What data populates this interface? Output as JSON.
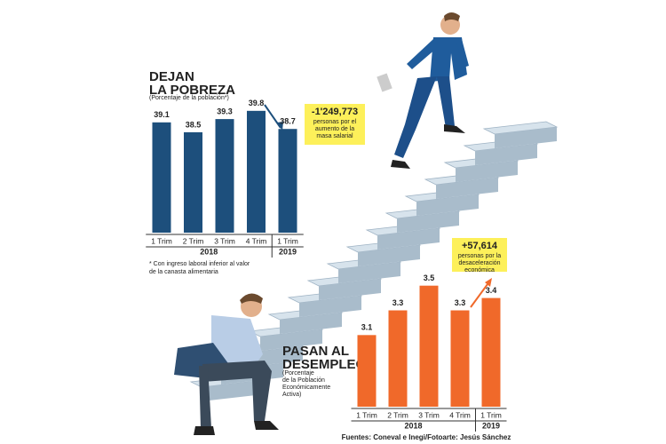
{
  "chart_data": [
    {
      "type": "bar",
      "title_lines": [
        "DEJAN",
        "LA POBREZA"
      ],
      "subtitle": "(Porcentaje de la población*)",
      "categories": [
        "1 Trim",
        "2 Trim",
        "3 Trim",
        "4 Trim",
        "1 Trim"
      ],
      "years": [
        "2018",
        "2019"
      ],
      "values": [
        39.1,
        38.5,
        39.3,
        39.8,
        38.7
      ],
      "color": "#1d4f7c",
      "ylim": [
        32.4,
        40.6
      ],
      "footnote": [
        "* Con ingreso laboral inferior al valor",
        "de la canasta alimentaria"
      ],
      "annotation": {
        "figure": "-1'249,773",
        "text": [
          "personas por el",
          "aumento de la",
          "masa salarial"
        ]
      }
    },
    {
      "type": "bar",
      "title_lines": [
        "PASAN AL",
        "DESEMPLEO"
      ],
      "subtitle": [
        "(Porcentaje",
        "de la Población",
        "Económicamente",
        "Activa)"
      ],
      "categories": [
        "1 Trim",
        "2 Trim",
        "3 Trim",
        "4 Trim",
        "1 Trim"
      ],
      "years": [
        "2018",
        "2019"
      ],
      "values": [
        3.1,
        3.3,
        3.5,
        3.3,
        3.4
      ],
      "color": "#f0692a",
      "ylim": [
        2.52,
        3.62
      ],
      "annotation": {
        "figure": "+57,614",
        "text": [
          "personas por la",
          "desaceleración",
          "económica"
        ]
      }
    }
  ],
  "source": "Fuentes: Coneval e Inegi/Fotoarte: Jesús Sánchez"
}
